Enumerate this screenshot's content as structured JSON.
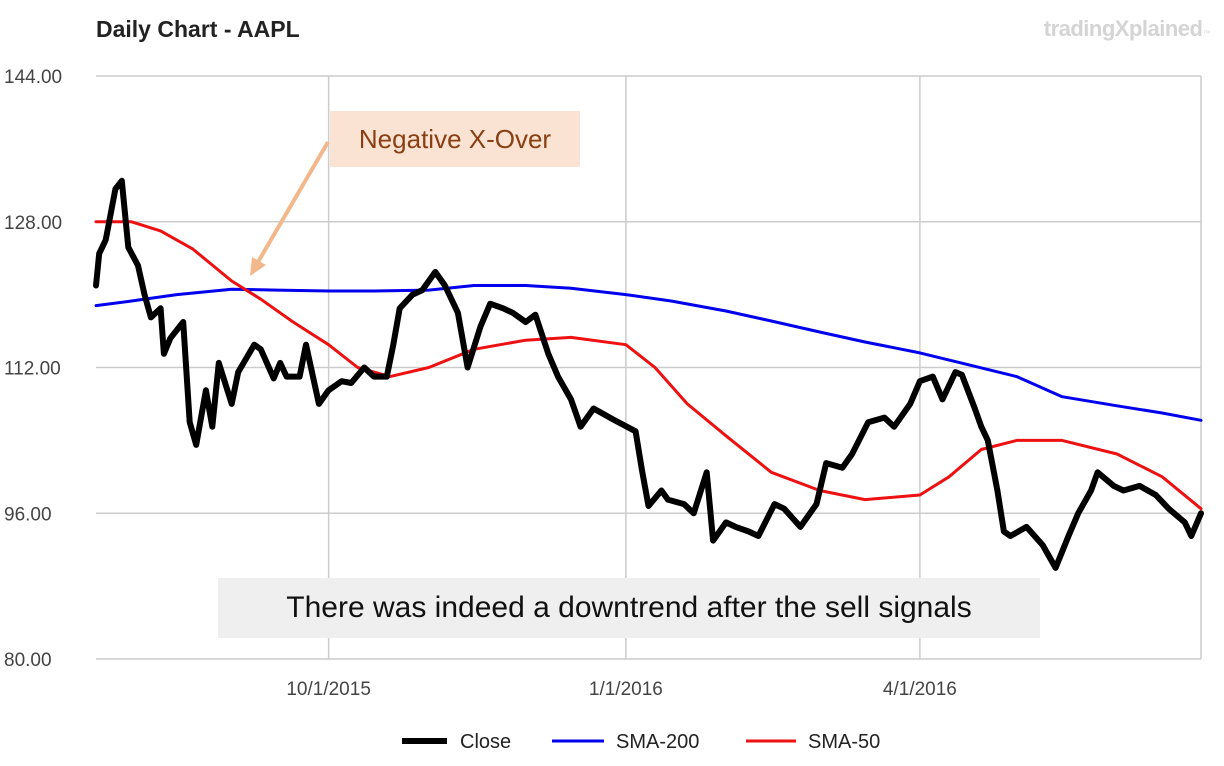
{
  "header": {
    "title": "Daily Chart - AAPL",
    "brand": "tradingXplained",
    "brand_mark": "™"
  },
  "annotations": {
    "crossover_label": "Negative X-Over",
    "caption": "There was indeed a downtrend after the sell signals"
  },
  "colors": {
    "close": "#000000",
    "sma200": "#0000ee",
    "sma50": "#ee1111",
    "grid": "#cccccc",
    "arrow": "#f2b88c"
  },
  "chart_data": {
    "type": "line",
    "title": "Daily Chart - AAPL",
    "x_scale": "date",
    "xlim": [
      "2015-07-21",
      "2016-06-27"
    ],
    "ylim": [
      80,
      144
    ],
    "y_ticks": [
      "80.00",
      "96.00",
      "112.00",
      "128.00",
      "144.00"
    ],
    "x_ticks": [
      {
        "label": "10/1/2015",
        "date": "2015-10-01"
      },
      {
        "label": "1/1/2016",
        "date": "2016-01-01"
      },
      {
        "label": "4/1/2016",
        "date": "2016-04-01"
      }
    ],
    "grid": true,
    "legend_position": "bottom",
    "series": [
      {
        "name": "Close",
        "x": [
          "2015-07-21",
          "2015-07-22",
          "2015-07-24",
          "2015-07-27",
          "2015-07-29",
          "2015-07-31",
          "2015-08-03",
          "2015-08-05",
          "2015-08-07",
          "2015-08-10",
          "2015-08-11",
          "2015-08-13",
          "2015-08-17",
          "2015-08-19",
          "2015-08-21",
          "2015-08-24",
          "2015-08-26",
          "2015-08-28",
          "2015-09-01",
          "2015-09-03",
          "2015-09-08",
          "2015-09-10",
          "2015-09-14",
          "2015-09-16",
          "2015-09-18",
          "2015-09-22",
          "2015-09-24",
          "2015-09-28",
          "2015-10-01",
          "2015-10-05",
          "2015-10-08",
          "2015-10-12",
          "2015-10-15",
          "2015-10-19",
          "2015-10-21",
          "2015-10-23",
          "2015-10-27",
          "2015-10-30",
          "2015-11-03",
          "2015-11-06",
          "2015-11-10",
          "2015-11-13",
          "2015-11-17",
          "2015-11-20",
          "2015-11-24",
          "2015-11-27",
          "2015-12-01",
          "2015-12-04",
          "2015-12-08",
          "2015-12-11",
          "2015-12-15",
          "2015-12-18",
          "2015-12-22",
          "2015-12-28",
          "2016-01-04",
          "2016-01-06",
          "2016-01-08",
          "2016-01-12",
          "2016-01-14",
          "2016-01-19",
          "2016-01-22",
          "2016-01-26",
          "2016-01-28",
          "2016-02-01",
          "2016-02-04",
          "2016-02-08",
          "2016-02-11",
          "2016-02-16",
          "2016-02-19",
          "2016-02-24",
          "2016-02-29",
          "2016-03-03",
          "2016-03-08",
          "2016-03-11",
          "2016-03-16",
          "2016-03-21",
          "2016-03-24",
          "2016-03-29",
          "2016-04-01",
          "2016-04-05",
          "2016-04-08",
          "2016-04-12",
          "2016-04-14",
          "2016-04-18",
          "2016-04-20",
          "2016-04-22",
          "2016-04-25",
          "2016-04-27",
          "2016-04-29",
          "2016-05-04",
          "2016-05-09",
          "2016-05-13",
          "2016-05-17",
          "2016-05-20",
          "2016-05-24",
          "2016-05-26",
          "2016-05-31",
          "2016-06-03",
          "2016-06-08",
          "2016-06-13",
          "2016-06-17",
          "2016-06-22",
          "2016-06-24",
          "2016-06-27"
        ],
        "y": [
          121.0,
          124.5,
          126.0,
          131.6,
          132.5,
          125.2,
          123.2,
          120.0,
          117.5,
          118.5,
          113.5,
          115.2,
          117.0,
          106.0,
          103.5,
          109.5,
          105.5,
          112.5,
          108.0,
          111.5,
          114.5,
          114.0,
          110.8,
          112.5,
          111.0,
          111.0,
          114.5,
          108.0,
          109.5,
          110.5,
          110.3,
          112.0,
          111.0,
          111.0,
          114.5,
          118.5,
          120.0,
          120.5,
          122.5,
          121.0,
          118.0,
          112.0,
          116.5,
          119.0,
          118.5,
          118.0,
          117.0,
          117.8,
          113.5,
          111.0,
          108.5,
          105.5,
          107.5,
          106.3,
          105.0,
          100.7,
          96.8,
          98.5,
          97.5,
          97.0,
          96.0,
          100.5,
          93.0,
          95.0,
          94.5,
          94.0,
          93.5,
          97.0,
          96.5,
          94.5,
          97.0,
          101.5,
          101.0,
          102.5,
          106.0,
          106.5,
          105.5,
          108.0,
          110.5,
          111.0,
          108.5,
          111.5,
          111.2,
          107.5,
          105.5,
          104.0,
          98.5,
          94.0,
          93.5,
          94.5,
          92.5,
          90.0,
          93.5,
          96.0,
          98.5,
          100.5,
          99.0,
          98.5,
          99.0,
          98.0,
          96.5,
          95.0,
          93.5,
          96.0
        ],
        "color": "#000000"
      },
      {
        "name": "SMA-200",
        "x": [
          "2015-07-21",
          "2015-08-01",
          "2015-08-15",
          "2015-09-01",
          "2015-09-15",
          "2015-10-01",
          "2015-10-15",
          "2015-11-01",
          "2015-11-15",
          "2015-12-01",
          "2015-12-15",
          "2016-01-01",
          "2016-01-15",
          "2016-02-01",
          "2016-02-15",
          "2016-03-01",
          "2016-03-15",
          "2016-04-01",
          "2016-04-15",
          "2016-05-01",
          "2016-05-15",
          "2016-06-01",
          "2016-06-15",
          "2016-06-27"
        ],
        "y": [
          118.8,
          119.3,
          120.0,
          120.6,
          120.5,
          120.4,
          120.4,
          120.5,
          121.0,
          121.0,
          120.7,
          120.0,
          119.3,
          118.2,
          117.1,
          115.9,
          114.8,
          113.6,
          112.4,
          111.0,
          108.8,
          107.8,
          107.0,
          106.2
        ],
        "color": "#0000ee"
      },
      {
        "name": "SMA-50",
        "x": [
          "2015-07-21",
          "2015-08-01",
          "2015-08-10",
          "2015-08-20",
          "2015-09-01",
          "2015-09-10",
          "2015-09-20",
          "2015-10-01",
          "2015-10-10",
          "2015-10-20",
          "2015-11-01",
          "2015-11-15",
          "2015-12-01",
          "2015-12-15",
          "2016-01-01",
          "2016-01-10",
          "2016-01-20",
          "2016-02-01",
          "2016-02-15",
          "2016-03-01",
          "2016-03-15",
          "2016-04-01",
          "2016-04-10",
          "2016-04-20",
          "2016-05-01",
          "2016-05-15",
          "2016-06-01",
          "2016-06-15",
          "2016-06-27"
        ],
        "y": [
          128.0,
          128.0,
          127.0,
          125.0,
          121.5,
          119.5,
          117.0,
          114.5,
          112.0,
          111.0,
          112.0,
          114.0,
          115.0,
          115.3,
          114.5,
          112.0,
          108.0,
          104.5,
          100.5,
          98.5,
          97.5,
          98.0,
          100.0,
          103.0,
          104.0,
          104.0,
          102.5,
          100.0,
          96.5
        ],
        "color": "#ee1111"
      }
    ],
    "annotations": [
      "Negative X-Over",
      "There was indeed a downtrend after the sell signals"
    ]
  }
}
